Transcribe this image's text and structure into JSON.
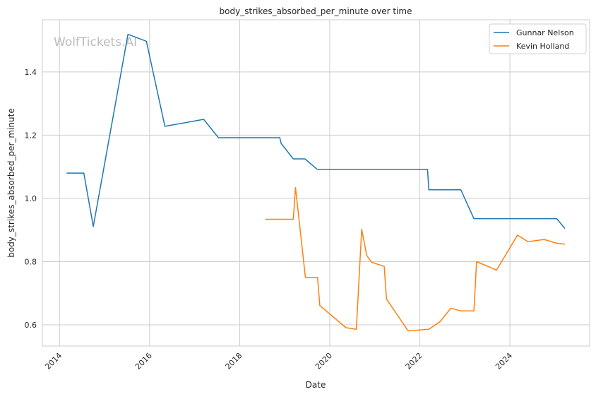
{
  "chart_data": {
    "type": "line",
    "title": "body_strikes_absorbed_per_minute over time",
    "xlabel": "Date",
    "ylabel": "body_strikes_absorbed_per_minute",
    "watermark": "WolfTickets.AI",
    "xlim": [
      2013.62,
      2025.77
    ],
    "ylim": [
      0.533,
      1.565
    ],
    "x_ticks": [
      2014,
      2016,
      2018,
      2020,
      2022,
      2024
    ],
    "x_tick_labels": [
      "2014",
      "2016",
      "2018",
      "2020",
      "2022",
      "2024"
    ],
    "y_ticks": [
      0.6,
      0.8,
      1.0,
      1.2,
      1.4
    ],
    "y_tick_labels": [
      "0.6",
      "0.8",
      "1.0",
      "1.2",
      "1.4"
    ],
    "grid": true,
    "legend_position": "top-right",
    "series": [
      {
        "name": "Gunnar Nelson",
        "color": "#1f77b4",
        "x": [
          2014.16,
          2014.54,
          2014.75,
          2015.52,
          2015.93,
          2016.34,
          2017.2,
          2017.53,
          2018.89,
          2018.92,
          2019.19,
          2019.45,
          2019.72,
          2022.17,
          2022.2,
          2022.91,
          2023.2,
          2025.04,
          2025.22
        ],
        "y": [
          1.08,
          1.08,
          0.911,
          1.519,
          1.497,
          1.228,
          1.25,
          1.192,
          1.192,
          1.174,
          1.125,
          1.125,
          1.092,
          1.092,
          1.027,
          1.027,
          0.936,
          0.936,
          0.905
        ]
      },
      {
        "name": "Kevin Holland",
        "color": "#ff7f0e",
        "x": [
          2018.57,
          2019.19,
          2019.24,
          2019.46,
          2019.73,
          2019.78,
          2020.36,
          2020.59,
          2020.71,
          2020.82,
          2020.93,
          2021.21,
          2021.26,
          2021.74,
          2022.2,
          2022.45,
          2022.69,
          2022.91,
          2023.2,
          2023.26,
          2023.56,
          2023.7,
          2024.17,
          2024.4,
          2024.76,
          2025.02,
          2025.22
        ],
        "y": [
          0.934,
          0.934,
          1.034,
          0.75,
          0.75,
          0.661,
          0.591,
          0.586,
          0.902,
          0.82,
          0.798,
          0.785,
          0.682,
          0.581,
          0.586,
          0.61,
          0.653,
          0.644,
          0.644,
          0.8,
          0.782,
          0.773,
          0.884,
          0.863,
          0.87,
          0.859,
          0.855
        ]
      }
    ]
  }
}
